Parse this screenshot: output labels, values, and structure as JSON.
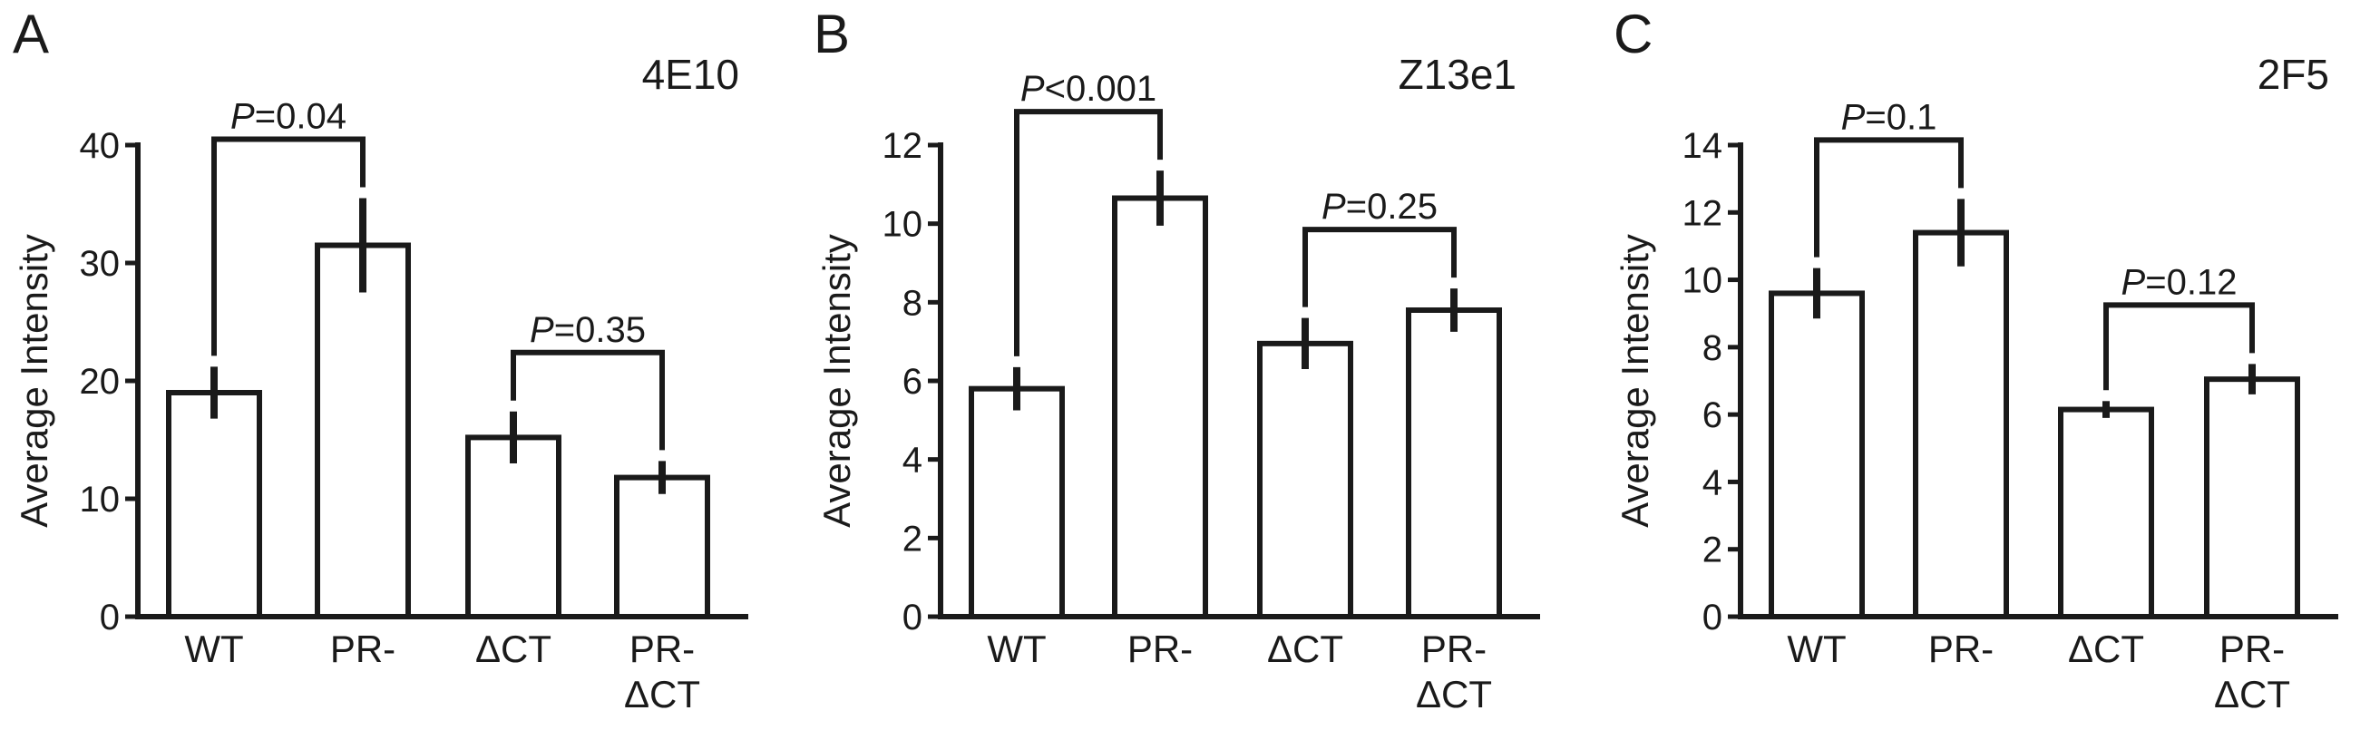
{
  "chart_data": [
    {
      "type": "bar",
      "panel": "A",
      "title": "4E10",
      "ylabel": "Average Intensity",
      "xlabel": "",
      "categories": [
        [
          "WT"
        ],
        [
          "PR-"
        ],
        [
          "ΔCT"
        ],
        [
          "PR-",
          "ΔCT"
        ]
      ],
      "values": [
        19,
        31.5,
        15.2,
        11.8
      ],
      "errors": [
        2.2,
        4,
        2.2,
        1.4
      ],
      "ylim": [
        0,
        40
      ],
      "yticks": [
        0,
        10,
        20,
        30,
        40
      ],
      "comparisons": [
        {
          "pair": [
            0,
            1
          ],
          "label_prefix": "P",
          "label_rest": "=0.04"
        },
        {
          "pair": [
            2,
            3
          ],
          "label_prefix": "P",
          "label_rest": "=0.35"
        }
      ]
    },
    {
      "type": "bar",
      "panel": "B",
      "title": "Z13e1",
      "ylabel": "Average Intensity",
      "xlabel": "",
      "categories": [
        [
          "WT"
        ],
        [
          "PR-"
        ],
        [
          "ΔCT"
        ],
        [
          "PR-",
          "ΔCT"
        ]
      ],
      "values": [
        5.8,
        10.65,
        6.95,
        7.8
      ],
      "errors": [
        0.55,
        0.7,
        0.65,
        0.55
      ],
      "ylim": [
        0,
        12
      ],
      "yticks": [
        0,
        2,
        4,
        6,
        8,
        10,
        12
      ],
      "comparisons": [
        {
          "pair": [
            0,
            1
          ],
          "label_prefix": "P",
          "label_rest": "<0.001"
        },
        {
          "pair": [
            2,
            3
          ],
          "label_prefix": "P",
          "label_rest": "=0.25"
        }
      ]
    },
    {
      "type": "bar",
      "panel": "C",
      "title": "2F5",
      "ylabel": "Average Intensity",
      "xlabel": "",
      "categories": [
        [
          "WT"
        ],
        [
          "PR-"
        ],
        [
          "ΔCT"
        ],
        [
          "PR-",
          "ΔCT"
        ]
      ],
      "values": [
        9.6,
        11.4,
        6.15,
        7.05
      ],
      "errors": [
        0.75,
        1.0,
        0.25,
        0.45
      ],
      "ylim": [
        0,
        14
      ],
      "yticks": [
        0,
        2,
        4,
        6,
        8,
        10,
        12,
        14
      ],
      "comparisons": [
        {
          "pair": [
            0,
            1
          ],
          "label_prefix": "P",
          "label_rest": "=0.1"
        },
        {
          "pair": [
            2,
            3
          ],
          "label_prefix": "P",
          "label_rest": "=0.12"
        }
      ]
    }
  ],
  "colors": {
    "ink": "#1a1a1a",
    "bar_fill": "#ffffff",
    "background": "#ffffff"
  }
}
